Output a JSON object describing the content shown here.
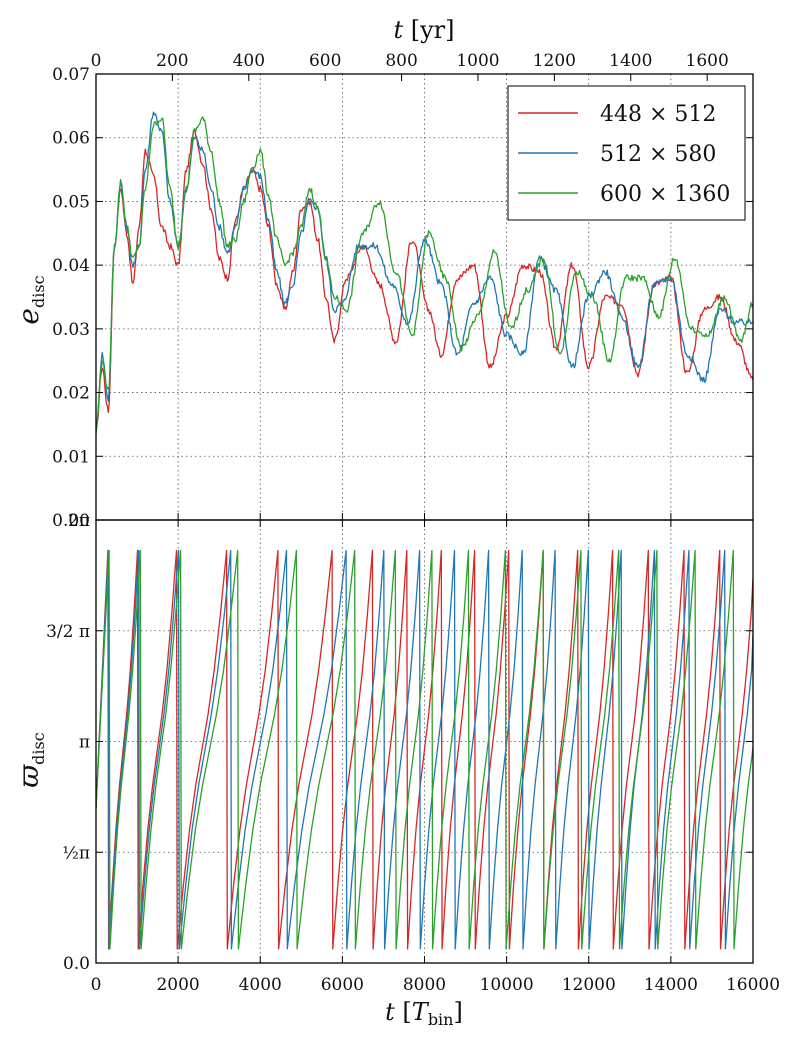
{
  "chart_data": [
    {
      "type": "line",
      "panel": "top",
      "xlabel_bottom": "t [T_bin]",
      "xlabel_top": "t [yr]",
      "ylabel": "e_disc",
      "xlim": [
        0,
        16000
      ],
      "ylim": [
        0.0,
        0.07
      ],
      "xticks": [
        0,
        2000,
        4000,
        6000,
        8000,
        10000,
        12000,
        14000,
        16000
      ],
      "yticks": [
        "0.00",
        "0.01",
        "0.02",
        "0.03",
        "0.04",
        "0.05",
        "0.06",
        "0.07"
      ],
      "top_axis": {
        "unit": "yr",
        "label_prefix": "t",
        "ticks": [
          0,
          200,
          400,
          600,
          800,
          1000,
          1200,
          1400,
          1600
        ],
        "years_per_Tbin": 0.1075
      },
      "grid": true,
      "legend_position": "top-right",
      "series": [
        {
          "name": "448 × 512",
          "color": "#d62728",
          "x": [
            0,
            150,
            300,
            450,
            600,
            750,
            900,
            1050,
            1200,
            1400,
            1600,
            1800,
            2000,
            2200,
            2400,
            2600,
            2800,
            3000,
            3200,
            3400,
            3600,
            3800,
            4000,
            4200,
            4400,
            4600,
            4800,
            5000,
            5200,
            5400,
            5600,
            5800,
            6100,
            6500,
            6900,
            7300,
            7700,
            8100,
            8400,
            8800,
            9200,
            9600,
            10000,
            10400,
            10800,
            11200,
            11600,
            12000,
            12400,
            12800,
            13200,
            13600,
            14000,
            14400,
            14800,
            15200,
            15600,
            16000
          ],
          "y": [
            0.014,
            0.024,
            0.017,
            0.043,
            0.052,
            0.045,
            0.037,
            0.046,
            0.058,
            0.054,
            0.046,
            0.043,
            0.04,
            0.055,
            0.061,
            0.056,
            0.049,
            0.041,
            0.038,
            0.047,
            0.052,
            0.055,
            0.052,
            0.046,
            0.037,
            0.033,
            0.039,
            0.049,
            0.05,
            0.044,
            0.035,
            0.028,
            0.038,
            0.043,
            0.037,
            0.028,
            0.044,
            0.033,
            0.026,
            0.038,
            0.04,
            0.024,
            0.032,
            0.04,
            0.039,
            0.027,
            0.04,
            0.024,
            0.035,
            0.034,
            0.023,
            0.037,
            0.038,
            0.023,
            0.033,
            0.035,
            0.028,
            0.022
          ]
        },
        {
          "name": "512 × 580",
          "color": "#1f77b4",
          "x": [
            0,
            150,
            300,
            450,
            600,
            750,
            900,
            1050,
            1200,
            1400,
            1600,
            1800,
            2000,
            2200,
            2400,
            2600,
            2800,
            3000,
            3200,
            3400,
            3600,
            3800,
            4000,
            4200,
            4400,
            4600,
            4800,
            5000,
            5200,
            5400,
            5600,
            5800,
            6000,
            6400,
            6800,
            7200,
            7600,
            8000,
            8400,
            8800,
            9200,
            9600,
            10000,
            10400,
            10800,
            11200,
            11600,
            12000,
            12400,
            12800,
            13200,
            13600,
            14000,
            14400,
            14800,
            15200,
            15600,
            16000
          ],
          "y": [
            0.014,
            0.026,
            0.019,
            0.043,
            0.053,
            0.046,
            0.04,
            0.043,
            0.055,
            0.064,
            0.061,
            0.05,
            0.043,
            0.052,
            0.06,
            0.058,
            0.052,
            0.046,
            0.042,
            0.046,
            0.052,
            0.055,
            0.054,
            0.047,
            0.039,
            0.034,
            0.037,
            0.045,
            0.05,
            0.049,
            0.041,
            0.033,
            0.034,
            0.043,
            0.043,
            0.037,
            0.031,
            0.044,
            0.037,
            0.026,
            0.034,
            0.038,
            0.029,
            0.026,
            0.041,
            0.036,
            0.024,
            0.035,
            0.039,
            0.032,
            0.024,
            0.037,
            0.038,
            0.026,
            0.022,
            0.033,
            0.031,
            0.031
          ]
        },
        {
          "name": "600 × 1360",
          "color": "#2ca02c",
          "x": [
            0,
            150,
            300,
            450,
            600,
            750,
            900,
            1050,
            1200,
            1400,
            1600,
            1800,
            2000,
            2200,
            2400,
            2600,
            2800,
            3000,
            3200,
            3400,
            3600,
            3800,
            4000,
            4200,
            4400,
            4600,
            4800,
            5000,
            5200,
            5400,
            5600,
            5800,
            6100,
            6500,
            6900,
            7300,
            7700,
            8100,
            8500,
            8900,
            9300,
            9700,
            10100,
            10500,
            10900,
            11300,
            11700,
            12100,
            12500,
            12900,
            13300,
            13700,
            14100,
            14500,
            14900,
            15300,
            15700,
            16000
          ],
          "y": [
            0.014,
            0.025,
            0.02,
            0.043,
            0.053,
            0.046,
            0.041,
            0.043,
            0.052,
            0.062,
            0.063,
            0.052,
            0.043,
            0.052,
            0.061,
            0.063,
            0.058,
            0.05,
            0.043,
            0.044,
            0.05,
            0.055,
            0.058,
            0.051,
            0.044,
            0.04,
            0.042,
            0.046,
            0.052,
            0.049,
            0.041,
            0.035,
            0.033,
            0.045,
            0.05,
            0.039,
            0.029,
            0.045,
            0.038,
            0.027,
            0.032,
            0.042,
            0.03,
            0.036,
            0.041,
            0.026,
            0.039,
            0.035,
            0.025,
            0.038,
            0.038,
            0.032,
            0.041,
            0.03,
            0.029,
            0.035,
            0.028,
            0.034
          ]
        }
      ]
    },
    {
      "type": "line",
      "panel": "bottom",
      "xlabel": "t [T_bin]",
      "ylabel": "ϖ_disc",
      "xlim": [
        0,
        16000
      ],
      "ylim": [
        0,
        6.2832
      ],
      "xticks": [
        0,
        2000,
        4000,
        6000,
        8000,
        10000,
        12000,
        14000,
        16000
      ],
      "yticks": [
        {
          "value": 0.0,
          "label": "0.0"
        },
        {
          "value": 1.5708,
          "label": "½π"
        },
        {
          "value": 3.1416,
          "label": "π"
        },
        {
          "value": 4.7124,
          "label": "3/2 π"
        },
        {
          "value": 6.2832,
          "label": "2π"
        }
      ],
      "grid": true,
      "y_range_note": "angle wraps between ~0.2 and ~5.85 rad",
      "series": [
        {
          "name": "448 × 512",
          "color": "#d62728",
          "wrap_times": [
            290,
            1010,
            1960,
            3180,
            4430,
            5750,
            6730,
            7570,
            8410,
            9220,
            10050,
            10890,
            11730,
            12580,
            13450,
            14320,
            15190
          ]
        },
        {
          "name": "512 × 580",
          "color": "#1f77b4",
          "wrap_times": [
            300,
            1040,
            2010,
            3280,
            4640,
            6090,
            7010,
            7880,
            8730,
            9560,
            10380,
            11180,
            11990,
            12790,
            13600,
            14440,
            15310
          ]
        },
        {
          "name": "600 × 1360",
          "color": "#2ca02c",
          "wrap_times": [
            320,
            1080,
            2060,
            3450,
            4880,
            6300,
            7290,
            8180,
            9070,
            9970,
            10890,
            11810,
            12730,
            13660,
            14590,
            15520
          ]
        }
      ]
    }
  ]
}
